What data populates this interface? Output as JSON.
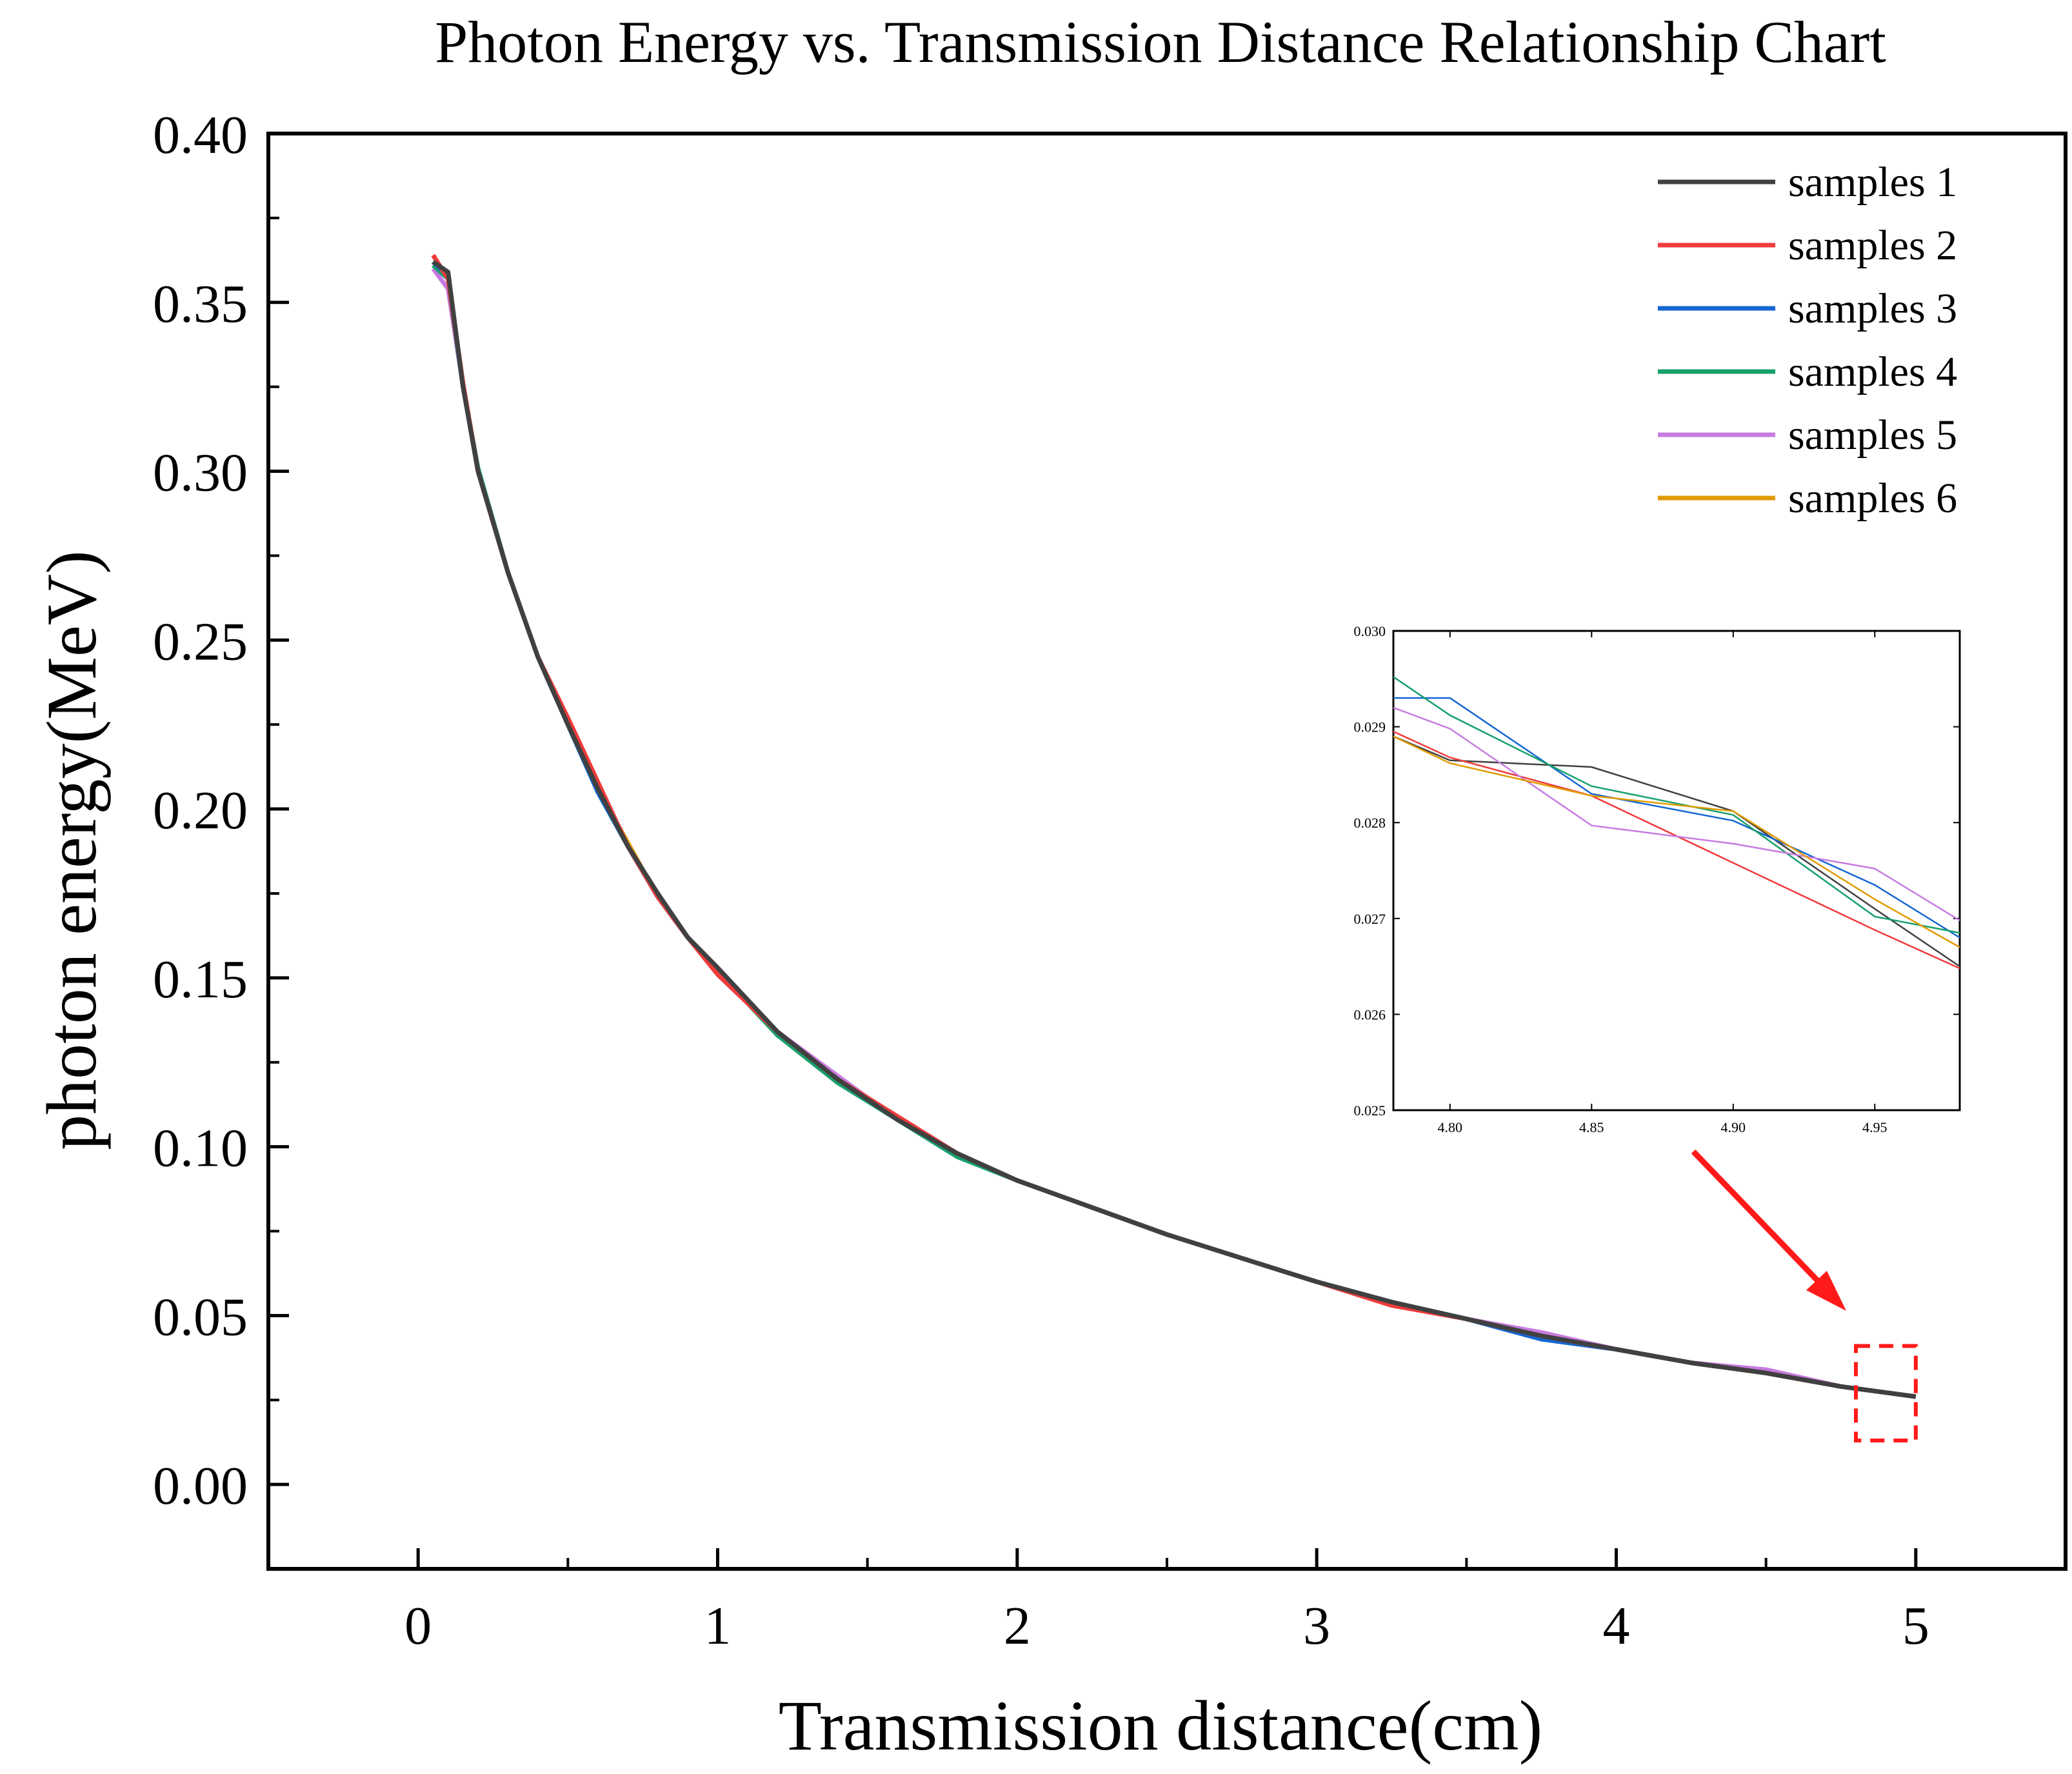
{
  "chart_data": {
    "type": "line",
    "title": "Photon Energy vs. Transmission Distance Relationship Chart",
    "xlabel": "Transmission distance(cm)",
    "ylabel": "photon energy(MeV)",
    "xlim": [
      -0.5,
      5.5
    ],
    "ylim": [
      -0.025,
      0.4
    ],
    "xticks": [
      0,
      1,
      2,
      3,
      4,
      5
    ],
    "xtick_labels": [
      "0",
      "1",
      "2",
      "3",
      "4",
      "5"
    ],
    "yticks": [
      0.0,
      0.05,
      0.1,
      0.15,
      0.2,
      0.25,
      0.3,
      0.35,
      0.4
    ],
    "ytick_labels": [
      "0.00",
      "0.05",
      "0.10",
      "0.15",
      "0.20",
      "0.25",
      "0.30",
      "0.35",
      "0.40"
    ],
    "legend_position": "top-right",
    "x": [
      0.05,
      0.1,
      0.15,
      0.2,
      0.3,
      0.4,
      0.5,
      0.6,
      0.7,
      0.8,
      0.9,
      1.0,
      1.2,
      1.4,
      1.6,
      1.8,
      2.0,
      2.25,
      2.5,
      2.75,
      3.0,
      3.25,
      3.5,
      3.75,
      4.0,
      4.25,
      4.5,
      4.75,
      5.0
    ],
    "base_curve": [
      0.362,
      0.357,
      0.325,
      0.3,
      0.27,
      0.245,
      0.225,
      0.206,
      0.189,
      0.174,
      0.162,
      0.152,
      0.134,
      0.12,
      0.108,
      0.098,
      0.09,
      0.082,
      0.074,
      0.067,
      0.06,
      0.054,
      0.049,
      0.044,
      0.04,
      0.036,
      0.033,
      0.029,
      0.026
    ],
    "series": [
      {
        "name": "samples 1",
        "color": "#404040",
        "offsets": [
          0.0,
          0.002,
          0.0,
          0.0,
          0.0,
          0.0,
          0.0,
          0.0,
          0.0,
          0.001,
          0.0,
          0.001,
          0.0,
          0.0,
          0.0,
          0.0,
          0.0,
          0.0,
          0.0,
          0.0,
          0.0,
          0.0,
          0.0,
          0.0,
          0.0,
          0.0,
          0.0,
          0.0,
          0.0
        ]
      },
      {
        "name": "samples 2",
        "color": "#ef3b3b",
        "offsets": [
          0.002,
          0.0,
          0.001,
          0.0,
          0.0,
          0.0,
          0.002,
          0.002,
          0.0,
          0.0,
          0.0,
          -0.001,
          0.0,
          0.0,
          0.001,
          0.0,
          0.0,
          0.0,
          0.0,
          0.0,
          0.0,
          -0.001,
          0.0,
          0.0,
          0.0,
          0.0,
          0.0,
          0.0,
          0.0
        ]
      },
      {
        "name": "samples 3",
        "color": "#1466d2",
        "offsets": [
          0.0,
          0.001,
          0.0,
          0.0,
          0.0,
          0.0,
          0.0,
          -0.001,
          0.0,
          0.0,
          0.0,
          0.0,
          0.0,
          0.0,
          0.0,
          0.0,
          0.0,
          0.0,
          0.0,
          0.0,
          0.0,
          0.0,
          0.0,
          -0.001,
          0.0,
          0.0,
          0.0,
          0.0,
          0.0
        ]
      },
      {
        "name": "samples 4",
        "color": "#16a06a",
        "offsets": [
          -0.001,
          0.0,
          0.0,
          0.001,
          0.0,
          0.0,
          0.0,
          -0.001,
          0.0,
          0.0,
          0.0,
          0.0,
          -0.001,
          -0.001,
          0.0,
          -0.001,
          0.0,
          0.0,
          0.0,
          0.0,
          0.0,
          0.0,
          0.0,
          0.0,
          0.0,
          0.0,
          0.0,
          0.0,
          0.0
        ]
      },
      {
        "name": "samples 5",
        "color": "#c77be0",
        "offsets": [
          -0.002,
          -0.003,
          0.0,
          0.0,
          0.0,
          0.0,
          0.0,
          0.0,
          0.0,
          0.0,
          0.0,
          0.0,
          0.0,
          0.001,
          0.0,
          0.0,
          0.0,
          0.0,
          0.0,
          0.0,
          0.0,
          0.0,
          0.0,
          0.001,
          0.0,
          0.0,
          0.001,
          0.0,
          0.0
        ]
      },
      {
        "name": "samples 6",
        "color": "#e09b00",
        "offsets": [
          0.0,
          0.0,
          0.001,
          0.0,
          0.0,
          0.0,
          0.0,
          0.0,
          0.001,
          0.0,
          0.0,
          0.0,
          0.0,
          0.0,
          0.0,
          0.0,
          0.0,
          0.0,
          0.0,
          0.0,
          0.0,
          0.0,
          0.0,
          0.0,
          0.0,
          0.0,
          0.0,
          0.0,
          0.0
        ]
      }
    ],
    "highlight_box": {
      "x_range": [
        4.8,
        5.0
      ],
      "y_range": [
        0.013,
        0.041
      ],
      "color": "#ff1a1a"
    },
    "inset": {
      "xlim": [
        4.78,
        4.98
      ],
      "ylim": [
        0.025,
        0.03
      ],
      "xticks": [
        4.8,
        4.85,
        4.9,
        4.95
      ],
      "xtick_labels": [
        "4.80",
        "4.85",
        "4.90",
        "4.95"
      ],
      "yticks": [
        0.025,
        0.026,
        0.027,
        0.028,
        0.029,
        0.03
      ],
      "ytick_labels": [
        "0.025",
        "0.026",
        "0.027",
        "0.028",
        "0.029",
        "0.030"
      ],
      "x": [
        4.78,
        4.8,
        4.85,
        4.9,
        4.95,
        4.98
      ],
      "series": [
        {
          "name": "samples 1",
          "values": [
            0.0289,
            0.02865,
            0.02858,
            0.02812,
            0.0271,
            0.0265
          ]
        },
        {
          "name": "samples 2",
          "values": [
            0.02895,
            0.02868,
            0.02828,
            0.02758,
            0.02688,
            0.02648
          ]
        },
        {
          "name": "samples 3",
          "values": [
            0.0293,
            0.0293,
            0.0283,
            0.02802,
            0.02735,
            0.0268
          ]
        },
        {
          "name": "samples 4",
          "values": [
            0.02952,
            0.02912,
            0.02838,
            0.02808,
            0.02702,
            0.02685
          ]
        },
        {
          "name": "samples 5",
          "values": [
            0.0292,
            0.02898,
            0.02797,
            0.02778,
            0.02752,
            0.02698
          ]
        },
        {
          "name": "samples 6",
          "values": [
            0.0289,
            0.02862,
            0.02828,
            0.02812,
            0.0272,
            0.0267
          ]
        }
      ]
    }
  }
}
